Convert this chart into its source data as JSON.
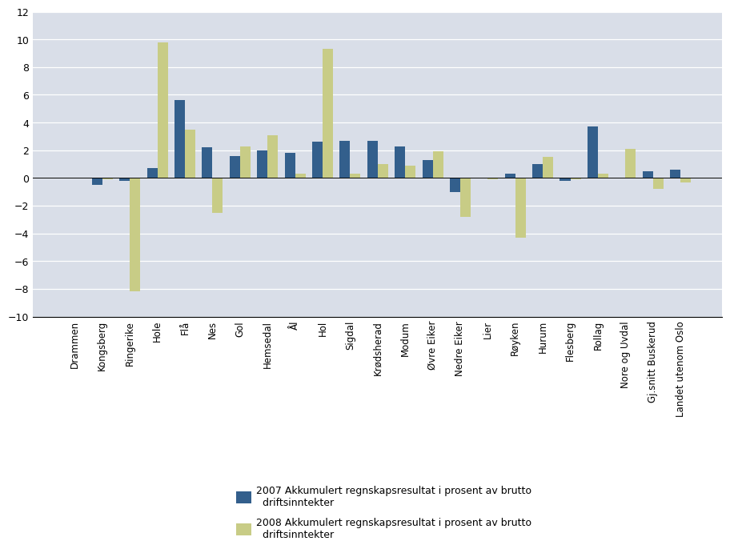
{
  "categories": [
    "Drammen",
    "Kongsberg",
    "Ringerike",
    "Hole",
    "Flå",
    "Nes",
    "Gol",
    "Hemsedal",
    "Ål",
    "Hol",
    "Sigdal",
    "Krødsherad",
    "Modum",
    "Øvre Eiker",
    "Nedre Eiker",
    "Lier",
    "Røyken",
    "Hurum",
    "Flesberg",
    "Rollag",
    "Nore og Uvdal",
    "Gj.snitt Buskerud",
    "Landet utenom Oslo"
  ],
  "series_2007": [
    0.0,
    -0.5,
    -0.2,
    0.7,
    5.6,
    2.2,
    1.6,
    2.0,
    1.8,
    2.6,
    2.7,
    2.7,
    2.3,
    1.3,
    -1.0,
    0.0,
    0.3,
    1.0,
    -0.2,
    3.7,
    0.0,
    0.5,
    0.6
  ],
  "series_2008": [
    0.0,
    -0.1,
    -8.2,
    9.8,
    3.5,
    -2.5,
    2.3,
    3.1,
    0.3,
    9.3,
    0.3,
    1.0,
    0.9,
    1.9,
    -2.8,
    -0.1,
    -4.3,
    1.5,
    -0.1,
    0.3,
    2.1,
    -0.8,
    -0.3
  ],
  "color_2007": "#335F8C",
  "color_2008": "#C8CC86",
  "legend_2007": "2007 Akkumulert regnskapsresultat i prosent av brutto\n  driftsinntekter",
  "legend_2008": "2008 Akkumulert regnskapsresultat i prosent av brutto\n  driftsinntekter",
  "ylim": [
    -10,
    12
  ],
  "yticks": [
    -10,
    -8,
    -6,
    -4,
    -2,
    0,
    2,
    4,
    6,
    8,
    10,
    12
  ],
  "plot_background": "#D9DEE8",
  "fig_background": "#ffffff",
  "bar_width": 0.38
}
